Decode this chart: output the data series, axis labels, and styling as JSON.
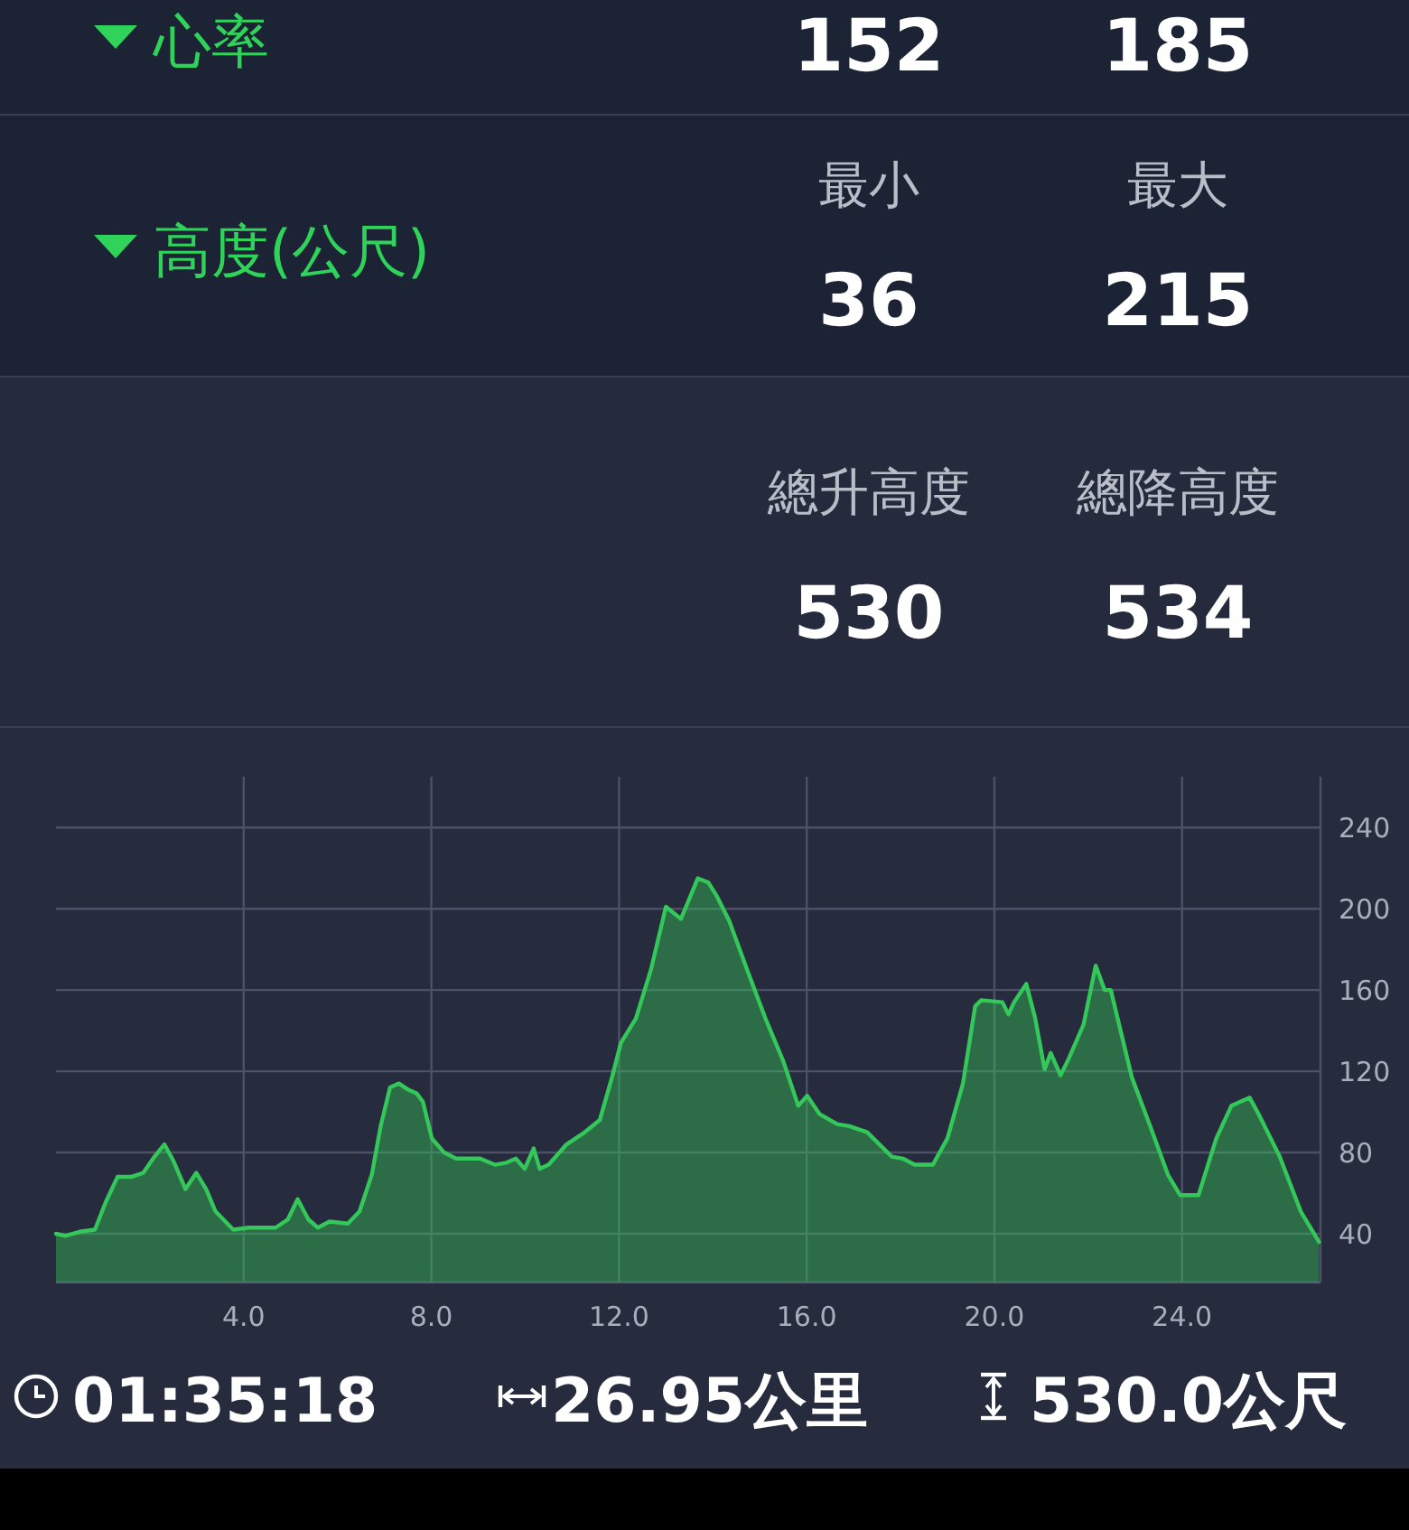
{
  "chart_data": [
    {
      "type": "other",
      "title": "心率",
      "categories": [
        null,
        null
      ],
      "values": [
        152,
        185
      ],
      "data_labels": true
    },
    {
      "type": "other",
      "title": "高度(公尺)",
      "categories": [
        "最小",
        "最大"
      ],
      "values": [
        36,
        215
      ],
      "data_labels": true
    },
    {
      "type": "other",
      "categories": [
        "總升高度",
        "總降高度"
      ],
      "values": [
        530,
        534
      ],
      "data_labels": true
    },
    {
      "type": "area",
      "color": "#34c759",
      "x": [
        0.0,
        0.2,
        0.5,
        0.83,
        1.05,
        1.31,
        1.6,
        1.86,
        2.1,
        2.31,
        2.5,
        2.76,
        2.99,
        3.2,
        3.4,
        3.78,
        4.1,
        4.68,
        4.94,
        5.15,
        5.38,
        5.58,
        5.83,
        6.22,
        6.47,
        6.73,
        6.92,
        7.12,
        7.31,
        7.5,
        7.69,
        7.82,
        8.01,
        8.27,
        8.53,
        9.04,
        9.35,
        9.6,
        9.8,
        9.99,
        10.18,
        10.31,
        10.5,
        10.88,
        11.27,
        11.59,
        11.85,
        12.04,
        12.36,
        12.68,
        13.0,
        13.32,
        13.68,
        13.9,
        14.09,
        14.35,
        14.73,
        15.12,
        15.5,
        15.82,
        16.01,
        16.27,
        16.65,
        16.91,
        17.29,
        17.81,
        18.05,
        18.3,
        18.69,
        19.0,
        19.33,
        19.59,
        19.72,
        20.17,
        20.3,
        20.42,
        20.68,
        20.87,
        21.07,
        21.2,
        21.41,
        21.58,
        21.9,
        22.16,
        22.35,
        22.48,
        22.93,
        23.32,
        23.7,
        23.96,
        24.35,
        24.73,
        25.05,
        25.44,
        25.63,
        26.08,
        26.53,
        26.92
      ],
      "values": [
        40,
        39,
        41,
        42,
        55,
        68,
        68,
        70,
        78,
        84,
        76,
        62,
        70,
        62,
        51,
        42,
        43,
        43,
        47,
        57,
        47,
        43,
        46,
        45,
        51,
        69,
        93,
        112,
        114,
        111,
        109,
        105,
        87,
        80,
        77,
        77,
        74,
        75,
        77,
        72,
        82,
        72,
        74,
        84,
        90,
        96,
        117,
        134,
        146,
        170,
        201,
        195,
        215,
        213,
        206,
        194,
        170,
        146,
        125,
        103,
        108,
        99,
        94,
        93,
        90,
        78,
        77,
        74,
        74,
        87,
        114,
        152,
        155,
        154,
        148,
        154,
        163,
        146,
        121,
        129,
        118,
        126,
        143,
        172,
        160,
        160,
        117,
        93,
        69,
        59,
        59,
        87,
        103,
        107,
        99,
        78,
        51,
        36
      ],
      "xlim": [
        0,
        26.95
      ],
      "xticks": [
        {
          "value": 4,
          "label": "4.0"
        },
        {
          "value": 8,
          "label": "8.0"
        },
        {
          "value": 12,
          "label": "12.0"
        },
        {
          "value": 16,
          "label": "16.0"
        },
        {
          "value": 20,
          "label": "20.0"
        },
        {
          "value": 24,
          "label": "24.0"
        }
      ],
      "ylim": [
        16,
        265
      ],
      "yticks": [
        40,
        80,
        120,
        160,
        200,
        240
      ],
      "grid": true,
      "annotations": [
        "01:35:18",
        "26.95公里",
        "530.0公尺"
      ]
    }
  ]
}
